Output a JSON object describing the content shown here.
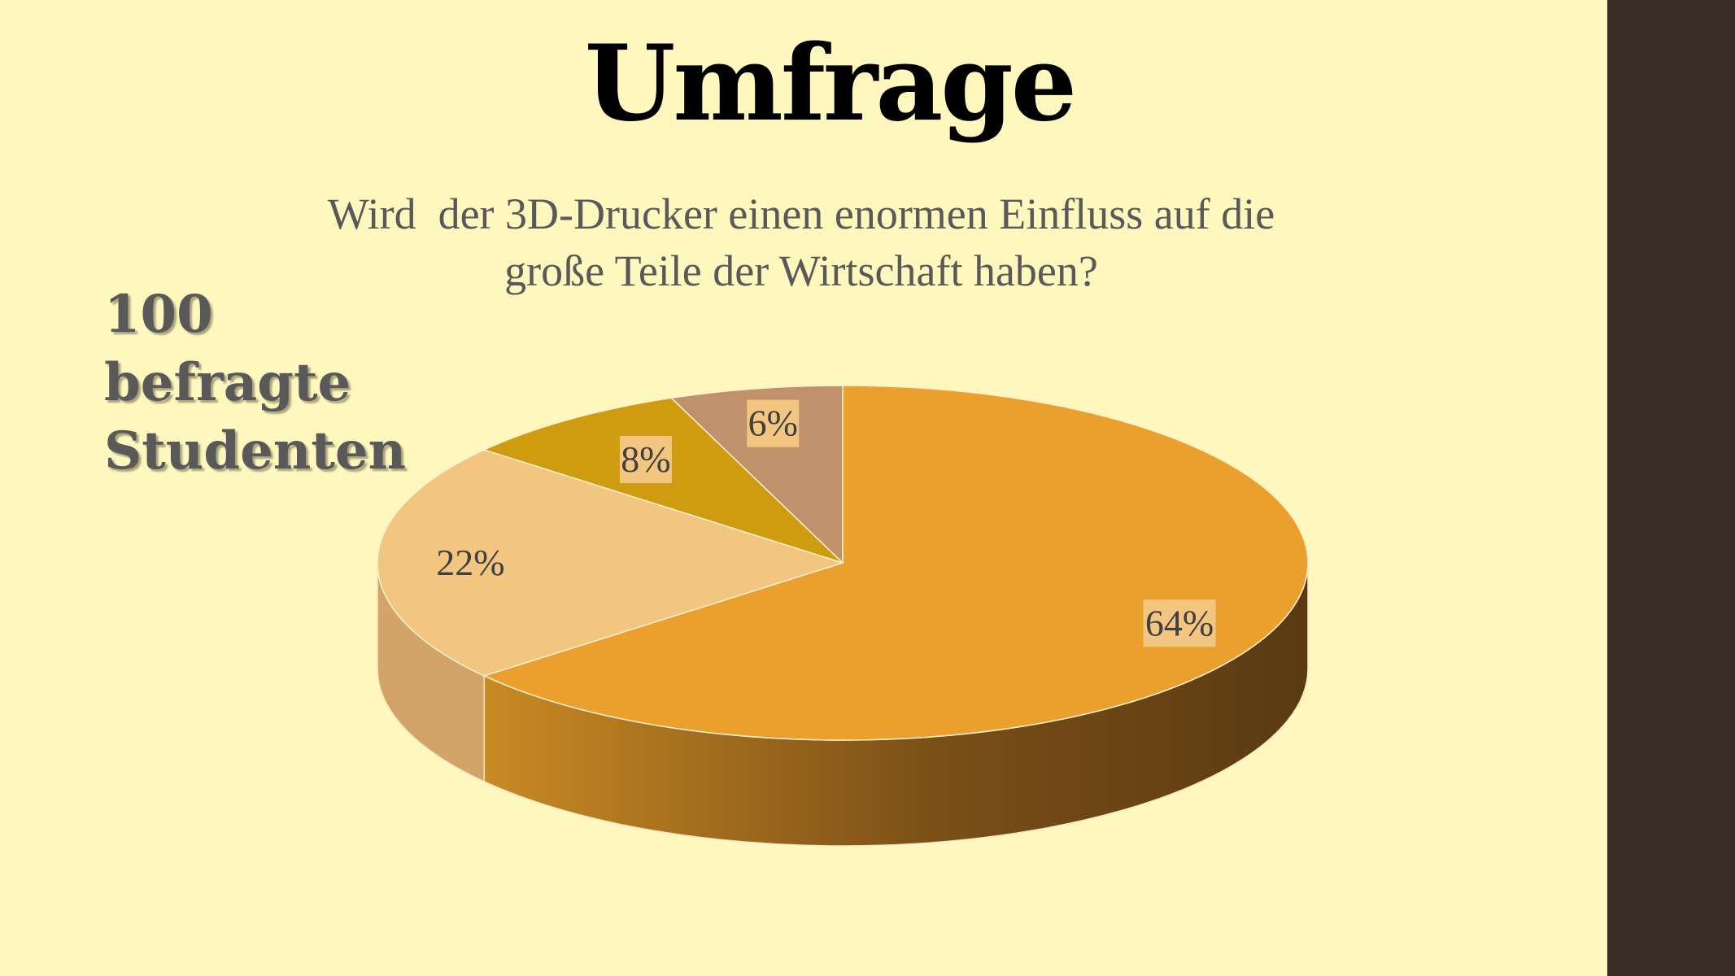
{
  "slide": {
    "title": "Umfrage",
    "respondents_lines": [
      "100",
      "befragte",
      "Studenten"
    ]
  },
  "chart_data": {
    "type": "pie",
    "title_lines": [
      "Wird  der 3D-Drucker einen enormen Einfluss auf die",
      "große Teile der Wirtschaft haben?"
    ],
    "values": [
      64,
      22,
      8,
      6
    ],
    "labels": [
      "64%",
      "22%",
      "8%",
      "6%"
    ],
    "colors": [
      "#EBA02D",
      "#F2C680",
      "#CF9B10",
      "#C0916A"
    ],
    "side_colors": [
      "#8A5A18",
      "#D2A469",
      "#7A5B08",
      "#8C6A4D"
    ],
    "label_box_color": "#F2C680",
    "style": "3d",
    "start_angle": "12 o'clock, clockwise"
  }
}
